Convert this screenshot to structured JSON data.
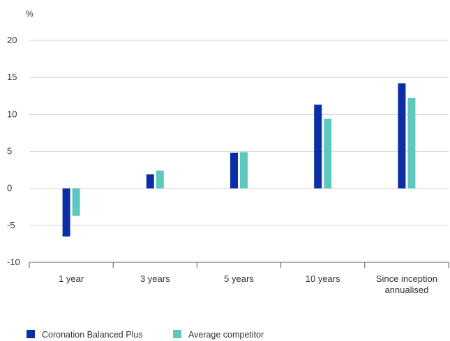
{
  "chart_data": {
    "type": "bar",
    "unit_label": "%",
    "categories": [
      [
        "1 year"
      ],
      [
        "3 years"
      ],
      [
        "5 years"
      ],
      [
        "10 years"
      ],
      [
        "Since inception",
        "annualised"
      ]
    ],
    "series": [
      {
        "name": "Coronation Balanced Plus",
        "color": "#0b2ea6",
        "values": [
          -6.5,
          1.9,
          4.8,
          11.3,
          14.2
        ]
      },
      {
        "name": "Average competitor",
        "color": "#5ec8c0",
        "values": [
          -3.7,
          2.4,
          4.9,
          9.4,
          12.2
        ]
      }
    ],
    "ylim": [
      -10,
      20
    ],
    "yticks": [
      20,
      15,
      10,
      5,
      0,
      -5,
      -10
    ],
    "grid": true,
    "legend_position": "bottom-left"
  }
}
